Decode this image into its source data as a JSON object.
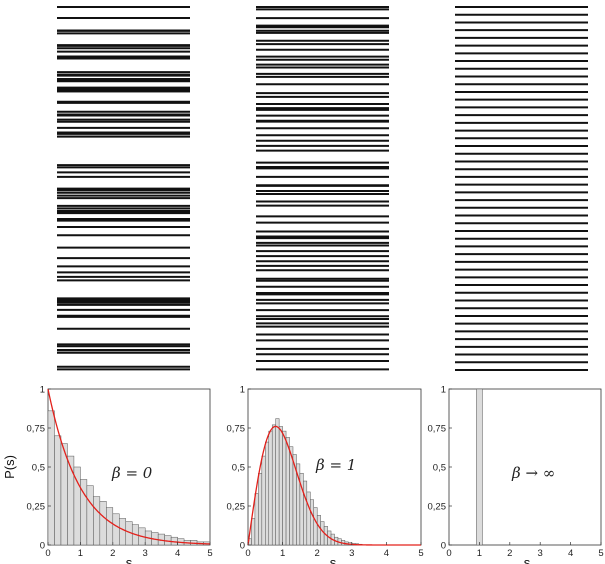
{
  "chart_data": [
    {
      "type": "bar",
      "title": "",
      "xlabel": "s",
      "ylabel": "P(s)",
      "annotation": "β = 0",
      "xlim": [
        0,
        5
      ],
      "ylim": [
        0,
        1
      ],
      "xticks": [
        "0",
        "1",
        "2",
        "3",
        "4",
        "5"
      ],
      "yticks": [
        "0",
        "0,25",
        "0,5",
        "0,75",
        "1"
      ],
      "bin_width": 0.2,
      "bin_starts": [
        0,
        0.2,
        0.4,
        0.6,
        0.8,
        1.0,
        1.2,
        1.4,
        1.6,
        1.8,
        2.0,
        2.2,
        2.4,
        2.6,
        2.8,
        3.0,
        3.2,
        3.4,
        3.6,
        3.8,
        4.0,
        4.2,
        4.4,
        4.6,
        4.8
      ],
      "values": [
        0.86,
        0.7,
        0.65,
        0.57,
        0.5,
        0.42,
        0.38,
        0.31,
        0.28,
        0.24,
        0.2,
        0.17,
        0.15,
        0.13,
        0.11,
        0.09,
        0.08,
        0.07,
        0.06,
        0.05,
        0.04,
        0.03,
        0.03,
        0.02,
        0.02
      ],
      "curve": {
        "name": "",
        "formula": "exp(-s)",
        "color": "#e3201b"
      },
      "bar_color": "#dcdcdc"
    },
    {
      "type": "bar",
      "title": "",
      "xlabel": "s",
      "ylabel": "",
      "annotation": "β = 1",
      "xlim": [
        0,
        5
      ],
      "ylim": [
        0,
        1
      ],
      "xticks": [
        "0",
        "1",
        "2",
        "3",
        "4",
        "5"
      ],
      "yticks": [
        "0",
        "0,25",
        "0,5",
        "0,75",
        "1"
      ],
      "bin_width": 0.1,
      "bin_starts": [
        0,
        0.1,
        0.2,
        0.3,
        0.4,
        0.5,
        0.6,
        0.7,
        0.8,
        0.9,
        1.0,
        1.1,
        1.2,
        1.3,
        1.4,
        1.5,
        1.6,
        1.7,
        1.8,
        1.9,
        2.0,
        2.1,
        2.2,
        2.3,
        2.4,
        2.5,
        2.6,
        2.7,
        2.8,
        2.9,
        3.0,
        3.1,
        3.2
      ],
      "values": [
        0.04,
        0.17,
        0.33,
        0.46,
        0.57,
        0.66,
        0.73,
        0.77,
        0.81,
        0.76,
        0.73,
        0.69,
        0.63,
        0.58,
        0.52,
        0.46,
        0.41,
        0.34,
        0.29,
        0.24,
        0.19,
        0.15,
        0.12,
        0.09,
        0.07,
        0.05,
        0.04,
        0.03,
        0.02,
        0.015,
        0.01,
        0.008,
        0.005
      ],
      "curve": {
        "name": "",
        "formula": "(pi/2) s exp(-pi s^2 / 4)",
        "color": "#e3201b"
      },
      "bar_color": "#dcdcdc"
    },
    {
      "type": "bar",
      "title": "",
      "xlabel": "s",
      "ylabel": "",
      "annotation": "β → ∞",
      "xlim": [
        0,
        5
      ],
      "ylim": [
        0,
        1
      ],
      "xticks": [
        "0",
        "1",
        "2",
        "3",
        "4",
        "5"
      ],
      "yticks": [
        "0",
        "0,25",
        "0,5",
        "0,75",
        "1"
      ],
      "bin_width": 0.2,
      "bin_starts": [
        0.9
      ],
      "values": [
        1.0
      ],
      "bar_color": "#dcdcdc"
    }
  ],
  "spectra": [
    {
      "name": "poisson-levels",
      "level_count": 72,
      "thin_line_color": "#111111"
    },
    {
      "name": "goe-levels",
      "level_count": 62,
      "thin_line_color": "#111111"
    },
    {
      "name": "crystal-levels",
      "level_count": 48,
      "thin_line_color": "#111111"
    }
  ]
}
